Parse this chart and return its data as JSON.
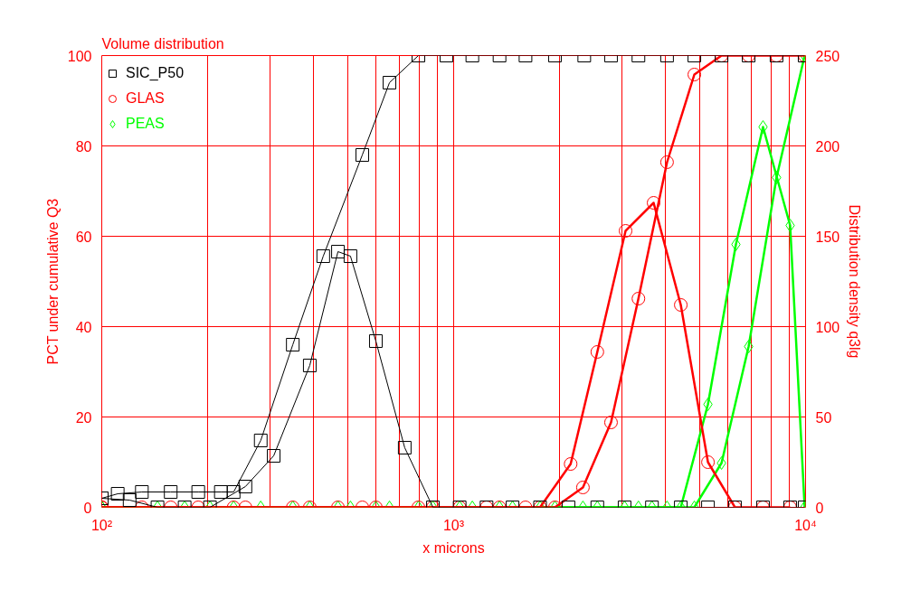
{
  "chart_data": {
    "type": "line",
    "title": "Volume distribution",
    "xlabel": "x microns",
    "ylabel": "PCT under cumulative Q3",
    "y2label": "Distribution density q3lg",
    "log": "x",
    "xlim": [
      100,
      10000
    ],
    "ylim": [
      0,
      100
    ],
    "y2lim": [
      0,
      250
    ],
    "xticks": [
      {
        "value": 100,
        "label": "10²"
      },
      {
        "value": 200,
        "label": null
      },
      {
        "value": 300,
        "label": null
      },
      {
        "value": 400,
        "label": null
      },
      {
        "value": 500,
        "label": null
      },
      {
        "value": 600,
        "label": null
      },
      {
        "value": 700,
        "label": null
      },
      {
        "value": 800,
        "label": null
      },
      {
        "value": 900,
        "label": null
      },
      {
        "value": 1000,
        "label": "10³"
      },
      {
        "value": 2000,
        "label": null
      },
      {
        "value": 3000,
        "label": null
      },
      {
        "value": 4000,
        "label": null
      },
      {
        "value": 5000,
        "label": null
      },
      {
        "value": 6000,
        "label": null
      },
      {
        "value": 7000,
        "label": null
      },
      {
        "value": 8000,
        "label": null
      },
      {
        "value": 9000,
        "label": null
      },
      {
        "value": 10000,
        "label": "10⁴"
      }
    ],
    "yticks": [
      0,
      20,
      40,
      60,
      80,
      100
    ],
    "y2ticks": [
      0,
      50,
      100,
      150,
      200,
      250
    ],
    "grid": true,
    "legend": "top left",
    "line_style": "solid",
    "series": [
      {
        "name": "SIC_P50",
        "color": "#000000",
        "marker": "square",
        "axis": "y",
        "x": [
          100,
          111,
          130,
          157,
          188,
          218,
          237,
          283,
          349,
          426,
          550,
          657,
          794,
          954,
          1130,
          1350,
          1600,
          1940,
          2350,
          2800,
          3350,
          4040,
          4830,
          5770,
          6890,
          8270,
          9940
        ],
        "values": [
          2,
          3,
          3.4,
          3.4,
          3.4,
          3.4,
          3.4,
          14.8,
          36,
          55.6,
          78,
          94,
          100,
          100,
          100,
          100,
          100,
          100,
          100,
          100,
          100,
          100,
          100,
          100,
          100,
          100,
          100
        ]
      },
      {
        "color": "#000000",
        "marker": "square",
        "axis": "y2",
        "x": [
          100,
          120,
          144,
          172,
          203,
          256,
          308,
          390,
          469,
          509,
          601,
          726,
          873,
          1040,
          1240,
          1470,
          1760,
          2120,
          2560,
          3060,
          3660,
          4420,
          5280,
          6300,
          7570,
          9040,
          9940
        ],
        "values": [
          5,
          4,
          0,
          0,
          0,
          11.5,
          28.5,
          78.5,
          141.5,
          139,
          92,
          33,
          0,
          0,
          0,
          0,
          0,
          0,
          0,
          0,
          0,
          0,
          0,
          0,
          0,
          0,
          0
        ]
      },
      {
        "name": "GLAS",
        "color": "#ff0000",
        "marker": "circle",
        "axis": "y",
        "x": [
          100,
          130,
          188,
          256,
          349,
          469,
          601,
          794,
          1040,
          1350,
          1600,
          1940,
          2330,
          2800,
          3350,
          4040,
          4830,
          5770,
          6890,
          8270,
          9940
        ],
        "values": [
          0,
          0,
          0,
          0,
          0,
          0,
          0,
          0,
          0,
          0,
          0,
          0,
          4.4,
          18.8,
          46.2,
          76.4,
          95.8,
          100,
          100,
          100,
          100
        ]
      },
      {
        "color": "#ff0000",
        "marker": "circle",
        "axis": "y2",
        "x": [
          100,
          157,
          237,
          390,
          550,
          873,
          1240,
          1760,
          2150,
          2560,
          3080,
          3700,
          4420,
          5280,
          6300,
          7570,
          9040
        ],
        "values": [
          0,
          0,
          0,
          0,
          0,
          0,
          0,
          0,
          24,
          86,
          153,
          168.5,
          112,
          25,
          0,
          0,
          0
        ]
      },
      {
        "name": "PEAS",
        "color": "#00ff00",
        "marker": "diamond",
        "axis": "y",
        "x": [
          100,
          144,
          203,
          283,
          390,
          509,
          657,
          873,
          1130,
          1470,
          1940,
          2560,
          3350,
          4040,
          4830,
          5770,
          6890,
          8270,
          9940
        ],
        "values": [
          0,
          0,
          0,
          0,
          0,
          0,
          0,
          0,
          0,
          0,
          0,
          0,
          0,
          0,
          0,
          9.8,
          35.6,
          73,
          100
        ]
      },
      {
        "color": "#00ff00",
        "marker": "diamond",
        "axis": "y2",
        "x": [
          100,
          172,
          237,
          349,
          469,
          601,
          794,
          1040,
          1350,
          1760,
          2330,
          3060,
          3660,
          4420,
          5280,
          6340,
          7570,
          9040,
          9940
        ],
        "values": [
          0,
          0,
          0,
          0,
          0,
          0,
          0,
          0,
          0,
          0,
          0,
          0,
          0,
          0,
          57,
          145.5,
          210.5,
          156,
          0
        ]
      }
    ]
  }
}
